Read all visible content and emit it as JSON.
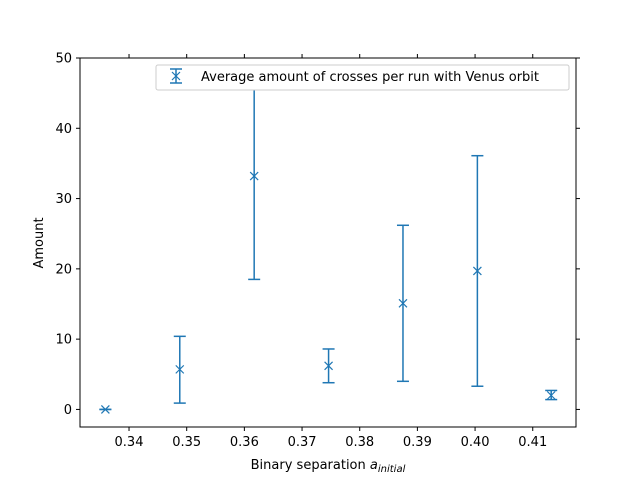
{
  "chart_data": {
    "type": "scatter",
    "xlabel_main": "Binary separation ",
    "xlabel_symbol": "a",
    "xlabel_subscript": "initial",
    "ylabel": "Amount",
    "xlim": [
      0.3315,
      0.4175
    ],
    "ylim": [
      -2.5,
      50
    ],
    "xticks": [
      0.34,
      0.35,
      0.36,
      0.37,
      0.38,
      0.39,
      0.4,
      0.41
    ],
    "xtick_labels": [
      "0.34",
      "0.35",
      "0.36",
      "0.37",
      "0.38",
      "0.39",
      "0.40",
      "0.41"
    ],
    "yticks": [
      0,
      10,
      20,
      30,
      40,
      50
    ],
    "ytick_labels": [
      "0",
      "10",
      "20",
      "30",
      "40",
      "50"
    ],
    "grid": false,
    "legend_position": "top-right",
    "color": "#1f77b4",
    "series": [
      {
        "name": "Average amount of crosses per run with Venus orbit",
        "marker": "x",
        "points": [
          {
            "x": 0.3359,
            "y": 0.0,
            "lo": 0.0,
            "hi": 0.0
          },
          {
            "x": 0.3488,
            "y": 5.7,
            "lo": 0.9,
            "hi": 10.4
          },
          {
            "x": 0.3617,
            "y": 33.2,
            "lo": 18.5,
            "hi": 46.5
          },
          {
            "x": 0.3746,
            "y": 6.2,
            "lo": 3.8,
            "hi": 8.6
          },
          {
            "x": 0.3875,
            "y": 15.1,
            "lo": 4.0,
            "hi": 26.2
          },
          {
            "x": 0.4004,
            "y": 19.7,
            "lo": 3.3,
            "hi": 36.1
          },
          {
            "x": 0.4132,
            "y": 2.0,
            "lo": 1.4,
            "hi": 2.7
          }
        ]
      }
    ]
  }
}
